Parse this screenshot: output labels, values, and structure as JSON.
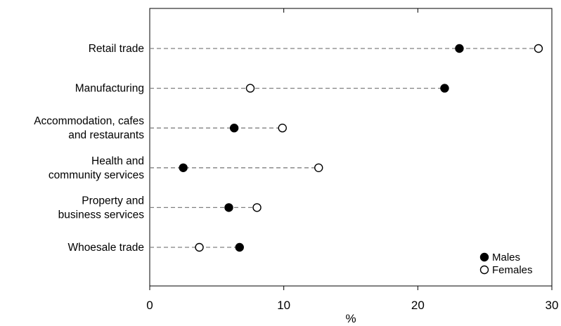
{
  "chart_data": {
    "type": "dot",
    "categories": [
      [
        "Retail trade"
      ],
      [
        "Manufacturing"
      ],
      [
        "Accommodation, cafes",
        "and restaurants"
      ],
      [
        "Health and",
        "community services"
      ],
      [
        "Property and",
        "business services"
      ],
      [
        "Whoesale trade"
      ]
    ],
    "series": [
      {
        "name": "Males",
        "marker": "filled",
        "values": [
          23.1,
          22.0,
          6.3,
          2.5,
          5.9,
          6.7
        ]
      },
      {
        "name": "Females",
        "marker": "open",
        "values": [
          29.0,
          7.5,
          9.9,
          12.6,
          8.0,
          3.7
        ]
      }
    ],
    "xlabel": "%",
    "xlim": [
      0,
      30
    ],
    "xticks": [
      0,
      10,
      20,
      30
    ],
    "legend_position": "bottom-right",
    "colors": {
      "filled": "#000000",
      "open": "#ffffff",
      "stroke": "#000000",
      "guide": "#808080"
    }
  }
}
